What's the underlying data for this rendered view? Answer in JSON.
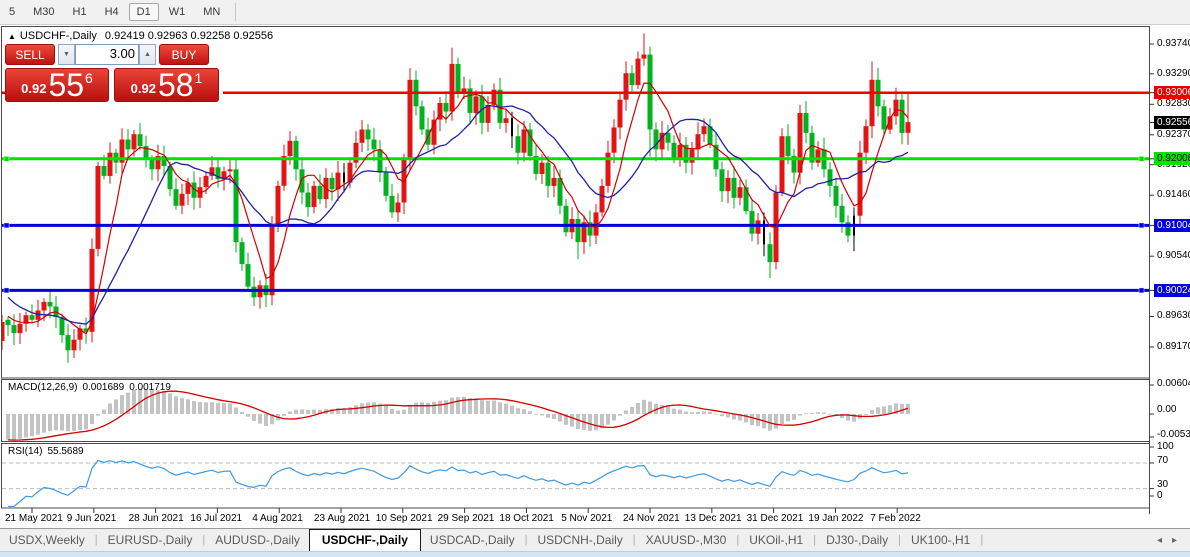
{
  "toolbar": {
    "items": [
      "5",
      "M30",
      "H1",
      "H4",
      "D1",
      "W1",
      "MN"
    ],
    "active": "D1"
  },
  "chart_header": {
    "collapse_icon": "▲",
    "title": "USDCHF-,Daily",
    "ohlc": "0.92419 0.92963 0.92258 0.92556"
  },
  "trade_panel": {
    "sell_label": "SELL",
    "buy_label": "BUY",
    "volume": "3.00",
    "spinner_down_icon": "▼",
    "spinner_up_icon": "▲",
    "sell_price": {
      "base": "0.92",
      "big": "55",
      "sup": "6"
    },
    "buy_price": {
      "base": "0.92",
      "big": "58",
      "sup": "1"
    }
  },
  "price_axis": {
    "plain_labels": [
      "0.93740",
      "0.93290",
      "0.92830",
      "0.92370",
      "0.91920",
      "0.91460",
      "0.90540",
      "0.89630",
      "0.89170"
    ],
    "badges": [
      {
        "text": "0.93006",
        "color": "red"
      },
      {
        "text": "0.92556",
        "color": "black"
      },
      {
        "text": "0.92008",
        "color": "green"
      },
      {
        "text": "0.91004",
        "color": "blue"
      },
      {
        "text": "0.90024",
        "color": "blue"
      }
    ]
  },
  "indicator_macd": {
    "label": "MACD(12,26,9)",
    "value_main": "0.001689",
    "value_signal": "0.001719",
    "axis_labels": [
      "0.006045",
      "0.00",
      "-0.005385"
    ]
  },
  "indicator_rsi": {
    "label": "RSI(14)",
    "value": "55.5689",
    "axis_labels": [
      "100",
      "70",
      "30",
      "0"
    ],
    "levels": [
      70,
      30
    ]
  },
  "date_axis": [
    "21 May 2021",
    "9 Jun 2021",
    "28 Jun 2021",
    "16 Jul 2021",
    "4 Aug 2021",
    "23 Aug 2021",
    "10 Sep 2021",
    "29 Sep 2021",
    "18 Oct 2021",
    "5 Nov 2021",
    "24 Nov 2021",
    "13 Dec 2021",
    "31 Dec 2021",
    "19 Jan 2022",
    "7 Feb 2022"
  ],
  "tab_bar": {
    "tabs": [
      "USDX,Weekly",
      "EURUSD-,Daily",
      "AUDUSD-,Daily",
      "USDCHF-,Daily",
      "USDCAD-,Daily",
      "USDCNH-,Daily",
      "XAUUSD-,M30",
      "UKOil-,H1",
      "DJ30-,Daily",
      "UK100-,H1"
    ],
    "active": "USDCHF-,Daily",
    "scroll_left_icon": "◂",
    "scroll_right_icon": "▸"
  },
  "colors": {
    "bull": "#e21414",
    "bear": "#00b21e",
    "black_candle": "#000000",
    "ma_fast": "#d40000",
    "ma_slow": "#2121a3",
    "hline_red": "#f00000",
    "hline_green": "#00e000",
    "hline_blue": "#0000dd",
    "macd_bar": "#c4c4c4",
    "macd_signal": "#d40000",
    "rsi_line": "#3e9ae6"
  },
  "chart_data": {
    "type": "candlestick",
    "symbol": "USDCHF-",
    "timeframe": "Daily",
    "ohlc_current": {
      "open": 0.92419,
      "high": 0.92963,
      "low": 0.92258,
      "close": 0.92556
    },
    "y_range": [
      0.889,
      0.9395
    ],
    "grid": false,
    "closes": [
      0.895,
      0.8938,
      0.8952,
      0.8965,
      0.8958,
      0.8972,
      0.8985,
      0.8978,
      0.8962,
      0.8935,
      0.8912,
      0.8928,
      0.8945,
      0.894,
      0.9065,
      0.919,
      0.9175,
      0.921,
      0.9195,
      0.923,
      0.9215,
      0.9238,
      0.922,
      0.92,
      0.9185,
      0.9205,
      0.919,
      0.9155,
      0.913,
      0.9148,
      0.9165,
      0.9142,
      0.9158,
      0.9175,
      0.9188,
      0.917,
      0.9182,
      0.9185,
      0.9075,
      0.9042,
      0.9008,
      0.8992,
      0.901,
      0.8995,
      0.91,
      0.916,
      0.9205,
      0.9228,
      0.9185,
      0.915,
      0.9128,
      0.916,
      0.914,
      0.9172,
      0.9155,
      0.918,
      0.9165,
      0.9195,
      0.9225,
      0.9245,
      0.923,
      0.9215,
      0.918,
      0.9145,
      0.912,
      0.9135,
      0.92,
      0.932,
      0.928,
      0.9245,
      0.9222,
      0.926,
      0.9285,
      0.9272,
      0.9344,
      0.93,
      0.9307,
      0.927,
      0.9295,
      0.9255,
      0.9282,
      0.9305,
      0.9255,
      0.9262,
      0.9235,
      0.921,
      0.9245,
      0.9205,
      0.9178,
      0.9195,
      0.916,
      0.9172,
      0.913,
      0.909,
      0.911,
      0.9075,
      0.9105,
      0.9085,
      0.912,
      0.916,
      0.921,
      0.9248,
      0.929,
      0.933,
      0.9312,
      0.9352,
      0.9358,
      0.9245,
      0.9215,
      0.924,
      0.9225,
      0.92,
      0.9222,
      0.9195,
      0.9215,
      0.9238,
      0.925,
      0.9222,
      0.9185,
      0.9152,
      0.9172,
      0.9142,
      0.9158,
      0.9122,
      0.9088,
      0.9108,
      0.9072,
      0.9045,
      0.915,
      0.9235,
      0.9205,
      0.918,
      0.927,
      0.924,
      0.9195,
      0.9215,
      0.9185,
      0.916,
      0.913,
      0.9105,
      0.9085,
      0.9115,
      0.921,
      0.925,
      0.932,
      0.928,
      0.9245,
      0.9265,
      0.929,
      0.924,
      0.9256
    ],
    "prehistory": [
      0.923,
      0.922,
      0.9215,
      0.9205,
      0.919,
      0.918,
      0.9165,
      0.915,
      0.9135,
      0.912,
      0.9105,
      0.9088,
      0.9072,
      0.9055,
      0.904,
      0.9028,
      0.9015,
      0.9005,
      0.8995,
      0.8988,
      0.898,
      0.8975,
      0.897,
      0.8966,
      0.8962,
      0.8958
    ],
    "black_candle_indices": [
      56,
      84,
      126,
      141
    ],
    "hlines": [
      {
        "price": 0.93006,
        "color": "red",
        "selected": false
      },
      {
        "price": 0.92008,
        "color": "green",
        "selected": true
      },
      {
        "price": 0.91004,
        "color": "blue",
        "selected": true
      },
      {
        "price": 0.90024,
        "color": "blue",
        "selected": true
      }
    ],
    "indicators": [
      {
        "name": "MACD",
        "params": [
          12,
          26,
          9
        ],
        "last_main": 0.001689,
        "last_signal": 0.001719,
        "axis": [
          0.006045,
          0.0,
          -0.005385
        ]
      },
      {
        "name": "RSI",
        "params": [
          14
        ],
        "last": 55.5689,
        "levels": [
          70,
          30
        ],
        "axis": [
          100,
          70,
          30,
          0
        ]
      }
    ]
  }
}
